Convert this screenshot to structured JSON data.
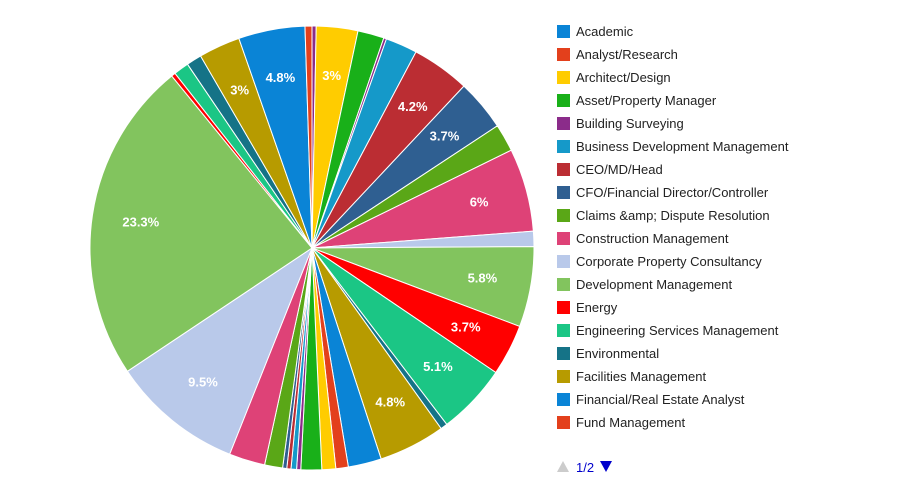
{
  "chart_data": {
    "type": "pie",
    "legend_position": "right",
    "legend_page": "1/2",
    "slices": [
      {
        "name": "",
        "value": 0.3,
        "color": "#8b2c8a"
      },
      {
        "name": "Architect/Design",
        "value": 3.0,
        "color": "#ffcc00",
        "label": "3%"
      },
      {
        "name": "Asset/Property Manager",
        "value": 1.9,
        "color": "#19b019"
      },
      {
        "name": "",
        "value": 0.2,
        "color": "#8b2c8a"
      },
      {
        "name": "Business Development Management",
        "value": 2.3,
        "color": "#1599c9"
      },
      {
        "name": "CEO/MD/Head",
        "value": 4.2,
        "color": "#bb2d33",
        "label": "4.2%"
      },
      {
        "name": "CFO/Financial Director/Controller",
        "value": 3.7,
        "color": "#2f5f91",
        "label": "3.7%"
      },
      {
        "name": "Claims &amp; Dispute Resolution",
        "value": 2.0,
        "color": "#5aa717"
      },
      {
        "name": "Construction Management",
        "value": 6.0,
        "color": "#de4277",
        "label": "6%"
      },
      {
        "name": "Corporate Property Consultancy",
        "value": 1.1,
        "color": "#b9c9ea"
      },
      {
        "name": "Development Management",
        "value": 5.8,
        "color": "#82c45e",
        "label": "5.8%"
      },
      {
        "name": "Energy",
        "value": 3.7,
        "color": "#ff0000",
        "label": "3.7%"
      },
      {
        "name": "Engineering Services Management",
        "value": 5.1,
        "color": "#1bc685",
        "label": "5.1%"
      },
      {
        "name": "Environmental",
        "value": 0.5,
        "color": "#157387"
      },
      {
        "name": "Facilities Management",
        "value": 4.8,
        "color": "#b79b00",
        "label": "4.8%"
      },
      {
        "name": "Financial/Real Estate Analyst",
        "value": 2.4,
        "color": "#0a84d6"
      },
      {
        "name": "Fund Management",
        "value": 0.9,
        "color": "#e3401c"
      },
      {
        "name": "",
        "value": 1.0,
        "color": "#ffcc00"
      },
      {
        "name": "",
        "value": 1.5,
        "color": "#19b019"
      },
      {
        "name": "",
        "value": 0.3,
        "color": "#8b2c8a"
      },
      {
        "name": "",
        "value": 0.4,
        "color": "#1599c9"
      },
      {
        "name": "",
        "value": 0.3,
        "color": "#bb2d33"
      },
      {
        "name": "",
        "value": 0.3,
        "color": "#2f5f91"
      },
      {
        "name": "",
        "value": 1.3,
        "color": "#5aa717"
      },
      {
        "name": "",
        "value": 2.6,
        "color": "#de4277"
      },
      {
        "name": "Corporate Property Consultancy",
        "value": 9.5,
        "color": "#b9c9ea",
        "label": "9.5%"
      },
      {
        "name": "Development Management",
        "value": 23.3,
        "color": "#82c45e",
        "label": "23.3%"
      },
      {
        "name": "",
        "value": 0.3,
        "color": "#ff0000"
      },
      {
        "name": "",
        "value": 1.1,
        "color": "#1bc685"
      },
      {
        "name": "",
        "value": 1.1,
        "color": "#157387"
      },
      {
        "name": "Facilities Management",
        "value": 3.0,
        "color": "#b79b00",
        "label": "3%"
      },
      {
        "name": "Financial/Real Estate Analyst",
        "value": 4.8,
        "color": "#0a84d6",
        "label": "4.8%"
      },
      {
        "name": "",
        "value": 0.5,
        "color": "#e3401c"
      }
    ],
    "legend": [
      {
        "label": "Academic",
        "color": "#0a84d6"
      },
      {
        "label": "Analyst/Research",
        "color": "#e3401c"
      },
      {
        "label": "Architect/Design",
        "color": "#ffcc00"
      },
      {
        "label": "Asset/Property Manager",
        "color": "#19b019"
      },
      {
        "label": "Building Surveying",
        "color": "#8b2c8a"
      },
      {
        "label": "Business Development Management",
        "color": "#1599c9"
      },
      {
        "label": "CEO/MD/Head",
        "color": "#bb2d33"
      },
      {
        "label": "CFO/Financial Director/Controller",
        "color": "#2f5f91"
      },
      {
        "label": "Claims &amp; Dispute Resolution",
        "color": "#5aa717"
      },
      {
        "label": "Construction Management",
        "color": "#de4277"
      },
      {
        "label": "Corporate Property Consultancy",
        "color": "#b9c9ea"
      },
      {
        "label": "Development Management",
        "color": "#82c45e"
      },
      {
        "label": "Energy",
        "color": "#ff0000"
      },
      {
        "label": "Engineering Services Management",
        "color": "#1bc685"
      },
      {
        "label": "Environmental",
        "color": "#157387"
      },
      {
        "label": "Facilities Management",
        "color": "#b79b00"
      },
      {
        "label": "Financial/Real Estate Analyst",
        "color": "#0a84d6"
      },
      {
        "label": "Fund Management",
        "color": "#e3401c"
      }
    ]
  }
}
